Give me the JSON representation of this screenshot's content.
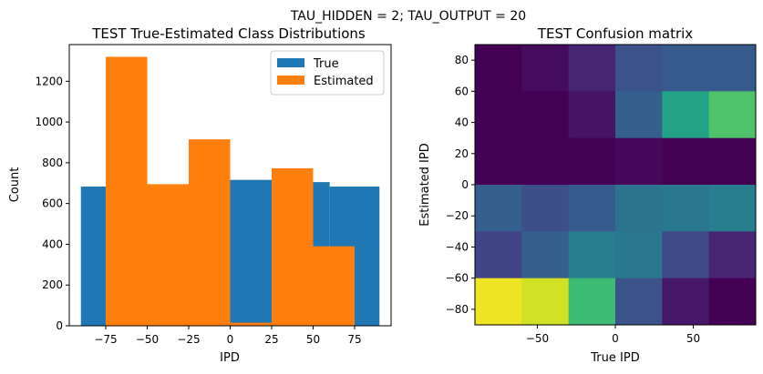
{
  "suptitle": "TAU_HIDDEN = 2; TAU_OUTPUT = 20",
  "colors": {
    "true_series": "#1f77b4",
    "estimated_series": "#ff7f0e",
    "axis": "#000000",
    "background": "#ffffff"
  },
  "chart_data": [
    {
      "type": "bar",
      "title": "TEST True-Estimated Class Distributions",
      "xlabel": "IPD",
      "ylabel": "Count",
      "xlim": [
        -97,
        97
      ],
      "ylim": [
        0,
        1380
      ],
      "xticks": [
        -75,
        -50,
        -25,
        0,
        25,
        50,
        75
      ],
      "xtick_labels": [
        "−75",
        "−50",
        "−25",
        "0",
        "25",
        "50",
        "75"
      ],
      "yticks": [
        0,
        200,
        400,
        600,
        800,
        1000,
        1200
      ],
      "ytick_labels": [
        "0",
        "200",
        "400",
        "600",
        "800",
        "1000",
        "1200"
      ],
      "legend": {
        "placement": "top-right",
        "entries": [
          "True",
          "Estimated"
        ]
      },
      "bin_edges": [
        -90,
        -64.3,
        -38.6,
        -12.9,
        12.9,
        38.6,
        64.3,
        90
      ],
      "series": [
        {
          "name": "True",
          "color_key": "true_series",
          "bins": [
            {
              "x0": -90,
              "x1": -75,
              "value": 683
            },
            {
              "x0": 0,
              "x1": 25,
              "value": 716
            },
            {
              "x0": 50,
              "x1": 60,
              "value": 705
            },
            {
              "x0": 60,
              "x1": 90,
              "value": 683
            }
          ]
        },
        {
          "name": "Estimated",
          "color_key": "estimated_series",
          "bins": [
            {
              "x0": -75,
              "x1": -50,
              "value": 1320
            },
            {
              "x0": -50,
              "x1": -25,
              "value": 695
            },
            {
              "x0": -25,
              "x1": 0,
              "value": 915
            },
            {
              "x0": 0,
              "x1": 25,
              "value": 15
            },
            {
              "x0": 25,
              "x1": 50,
              "value": 773
            },
            {
              "x0": 50,
              "x1": 75,
              "value": 390
            }
          ]
        }
      ]
    },
    {
      "type": "heatmap",
      "title": "TEST Confusion matrix",
      "xlabel": "True IPD",
      "ylabel": "Estimated IPD",
      "xlim": [
        -90,
        90
      ],
      "ylim": [
        -90,
        90
      ],
      "xticks": [
        -50,
        0,
        50
      ],
      "xtick_labels": [
        "−50",
        "0",
        "50"
      ],
      "yticks": [
        -80,
        -60,
        -40,
        -20,
        0,
        20,
        40,
        60,
        80
      ],
      "ytick_labels": [
        "−80",
        "−60",
        "−40",
        "−20",
        "0",
        "20",
        "40",
        "60",
        "80"
      ],
      "colormap": "viridis",
      "vmin": 0,
      "vmax": 1,
      "x_bin_edges": [
        -90,
        -60,
        -30,
        0,
        30,
        60,
        90
      ],
      "y_bin_edges": [
        -90,
        -60,
        -30,
        0,
        30,
        60,
        90
      ],
      "values_top_to_bottom": [
        [
          0.0,
          0.03,
          0.1,
          0.25,
          0.28,
          0.28
        ],
        [
          0.0,
          0.0,
          0.05,
          0.3,
          0.58,
          0.72
        ],
        [
          0.0,
          0.0,
          0.0,
          0.02,
          0.0,
          0.0
        ],
        [
          0.3,
          0.24,
          0.28,
          0.38,
          0.4,
          0.42
        ],
        [
          0.2,
          0.3,
          0.42,
          0.4,
          0.22,
          0.1
        ],
        [
          0.98,
          0.93,
          0.68,
          0.25,
          0.06,
          0.0
        ]
      ]
    }
  ]
}
